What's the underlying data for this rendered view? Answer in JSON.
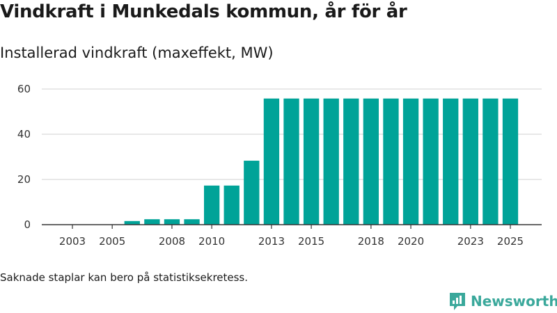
{
  "header": {
    "title": "Vindkraft i Munkedals kommun, år för år",
    "subtitle": "Installerad vindkraft (maxeffekt, MW)"
  },
  "footer": {
    "note": "Saknade staplar kan bero på statistiksekretess.",
    "brand": "Newsworthy"
  },
  "colors": {
    "bar": "#00a398",
    "grid": "#d9d9d9",
    "axis": "#333333",
    "brand": "#3aa89b"
  },
  "icons": {
    "brand_logo": "newsworthy-logo-icon"
  },
  "chart_data": {
    "type": "bar",
    "title": "Vindkraft i Munkedals kommun, år för år",
    "subtitle": "Installerad vindkraft (maxeffekt, MW)",
    "xlabel": "",
    "ylabel": "",
    "ylim": [
      0,
      60
    ],
    "yticks": [
      0,
      20,
      40,
      60
    ],
    "xticks": [
      2003,
      2005,
      2008,
      2010,
      2013,
      2015,
      2018,
      2020,
      2023,
      2025
    ],
    "grid": true,
    "categories": [
      2002,
      2003,
      2004,
      2005,
      2006,
      2007,
      2008,
      2009,
      2010,
      2011,
      2012,
      2013,
      2014,
      2015,
      2016,
      2017,
      2018,
      2019,
      2020,
      2021,
      2022,
      2023,
      2024,
      2025
    ],
    "values": [
      null,
      null,
      null,
      null,
      1.6,
      2.4,
      2.4,
      2.4,
      17.3,
      17.3,
      28.3,
      55.8,
      55.8,
      55.8,
      55.8,
      55.8,
      55.8,
      55.8,
      55.8,
      55.8,
      55.8,
      55.8,
      55.8,
      55.8
    ]
  }
}
